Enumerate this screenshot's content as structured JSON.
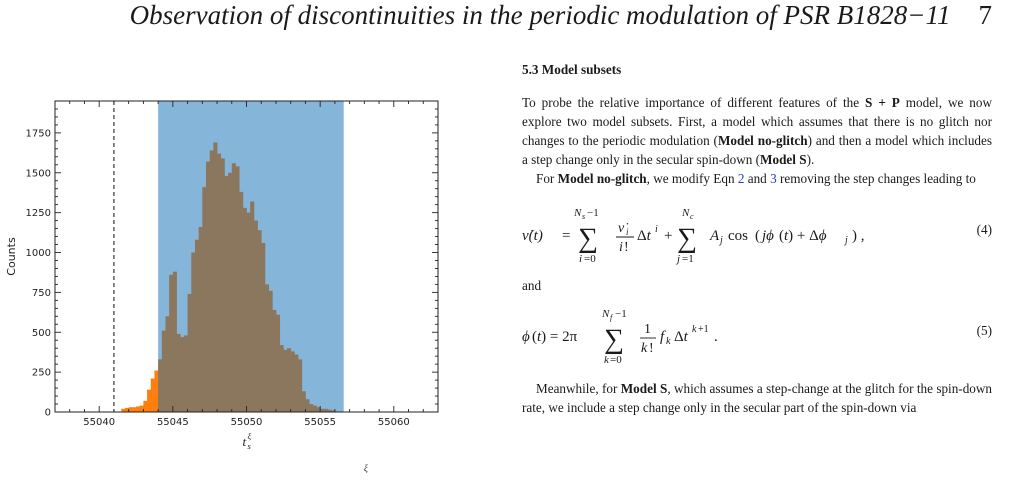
{
  "header": {
    "title": "Observation of discontinuities in the periodic modulation of PSR B1828−11",
    "page_number": "7"
  },
  "figure": {
    "ylabel": "Counts",
    "xlabel_base": "t",
    "xlabel_sup": "ξ",
    "xlabel_sub": "s",
    "caption_fragment": "ξ"
  },
  "chart_data": {
    "type": "histogram",
    "xlim": [
      55037,
      55063
    ],
    "ylim": [
      0,
      1950
    ],
    "xticks": [
      55040,
      55045,
      55050,
      55055,
      55060
    ],
    "yticks": [
      0,
      250,
      500,
      750,
      1000,
      1250,
      1500,
      1750
    ],
    "xlabel": "t_s^ξ",
    "ylabel": "Counts",
    "dashed_line_x": 55041.0,
    "shaded_interval": [
      55044.0,
      55056.6
    ],
    "shade_color": "#86b5da",
    "hist_outside_color": "#ff7f0e",
    "hist_inside_color": "#8b775e",
    "bin_width": 0.25,
    "bin_start": 55041.5,
    "counts": [
      20,
      25,
      30,
      30,
      35,
      40,
      70,
      140,
      210,
      260,
      330,
      510,
      600,
      860,
      880,
      490,
      470,
      480,
      740,
      1000,
      1080,
      1160,
      1410,
      1570,
      1640,
      1690,
      1620,
      1590,
      1480,
      1500,
      1560,
      1540,
      1380,
      1280,
      1250,
      1320,
      1200,
      1140,
      1060,
      800,
      760,
      640,
      610,
      420,
      390,
      400,
      380,
      360,
      330,
      130,
      80,
      50,
      40,
      30,
      20,
      20,
      15,
      10
    ]
  },
  "section": {
    "title": "5.3  Model subsets",
    "p1_a": "To probe the relative importance of different features of the ",
    "p1_model": "S + P",
    "p1_b": " model, we now explore two model subsets. First, a model which assumes that there is no glitch nor changes to the periodic modulation (",
    "p1_m1": "Model no-glitch",
    "p1_c": ") and then a model which includes a step change only in the secular spin-down (",
    "p1_m2": "Model S",
    "p1_d": ").",
    "p2_a": "For ",
    "p2_m": "Model no-glitch",
    "p2_b": ", we modify Eqn ",
    "p2_ref1": "2",
    "p2_c": " and ",
    "p2_ref2": "3",
    "p2_d": " removing the step changes leading to",
    "eq4_number": "(4)",
    "and_text": "and",
    "eq5_number": "(5)",
    "p3_a": "Meanwhile, for ",
    "p3_m": "Model S",
    "p3_b": ", which assumes a step-change at the glitch for the spin-down rate, we include a step change only in the secular part of the spin-down via"
  }
}
